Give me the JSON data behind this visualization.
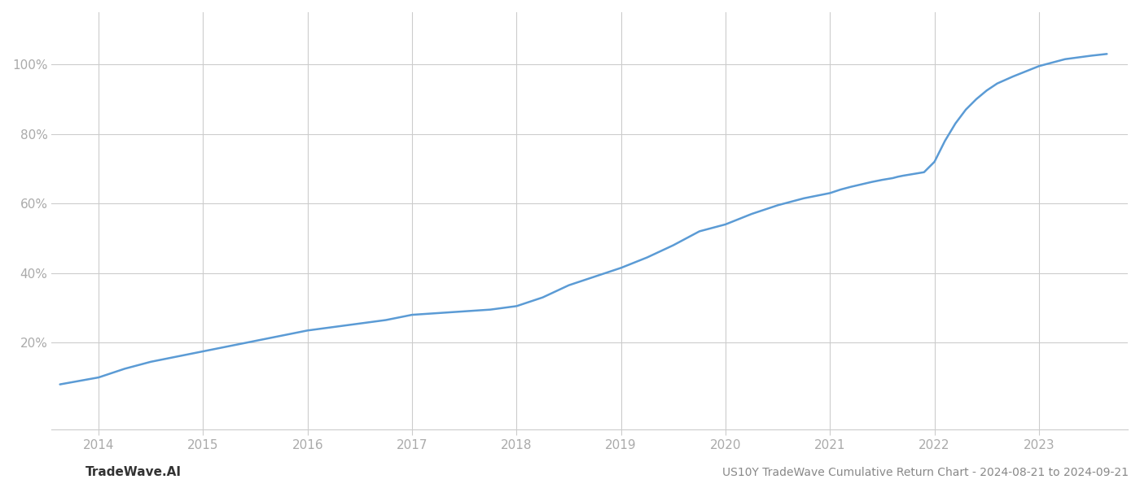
{
  "title": "US10Y TradeWave Cumulative Return Chart - 2024-08-21 to 2024-09-21",
  "watermark": "TradeWave.AI",
  "line_color": "#5b9bd5",
  "background_color": "#ffffff",
  "grid_color": "#cccccc",
  "x_years": [
    2014,
    2015,
    2016,
    2017,
    2018,
    2019,
    2020,
    2021,
    2022,
    2023
  ],
  "x_data": [
    2013.63,
    2014.0,
    2014.25,
    2014.5,
    2014.75,
    2015.0,
    2015.25,
    2015.5,
    2015.75,
    2016.0,
    2016.25,
    2016.5,
    2016.75,
    2017.0,
    2017.25,
    2017.5,
    2017.75,
    2018.0,
    2018.25,
    2018.5,
    2018.75,
    2019.0,
    2019.25,
    2019.5,
    2019.75,
    2020.0,
    2020.25,
    2020.5,
    2020.75,
    2021.0,
    2021.1,
    2021.2,
    2021.3,
    2021.4,
    2021.5,
    2021.6,
    2021.65,
    2021.7,
    2021.8,
    2021.9,
    2022.0,
    2022.1,
    2022.2,
    2022.3,
    2022.4,
    2022.5,
    2022.6,
    2022.75,
    2023.0,
    2023.25,
    2023.5,
    2023.65
  ],
  "y_data": [
    8.0,
    10.0,
    12.5,
    14.5,
    16.0,
    17.5,
    19.0,
    20.5,
    22.0,
    23.5,
    24.5,
    25.5,
    26.5,
    28.0,
    28.5,
    29.0,
    29.5,
    30.5,
    33.0,
    36.5,
    39.0,
    41.5,
    44.5,
    48.0,
    52.0,
    54.0,
    57.0,
    59.5,
    61.5,
    63.0,
    64.0,
    64.8,
    65.5,
    66.2,
    66.8,
    67.3,
    67.7,
    68.0,
    68.5,
    69.0,
    72.0,
    78.0,
    83.0,
    87.0,
    90.0,
    92.5,
    94.5,
    96.5,
    99.5,
    101.5,
    102.5,
    103.0
  ],
  "ylim": [
    -5,
    115
  ],
  "xlim": [
    2013.55,
    2023.85
  ],
  "yticks": [
    20,
    40,
    60,
    80,
    100
  ],
  "ytick_labels": [
    "20%",
    "40%",
    "60%",
    "80%",
    "100%"
  ],
  "line_width": 1.8,
  "title_fontsize": 10,
  "tick_fontsize": 11,
  "watermark_fontsize": 11,
  "title_color": "#888888",
  "tick_color": "#aaaaaa",
  "watermark_color": "#333333",
  "spine_color": "#cccccc"
}
